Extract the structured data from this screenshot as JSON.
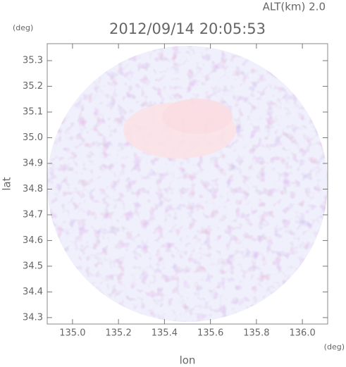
{
  "chart_data": {
    "type": "image",
    "title": "2012/09/14 20:05:53",
    "subtitle": "ALT(km) 2.0",
    "x_label": "lon",
    "y_label": "lat",
    "x_unit": "(deg)",
    "y_unit": "(deg)",
    "xlim": [
      134.89,
      136.11
    ],
    "ylim": [
      34.275,
      35.366
    ],
    "xticks": [
      {
        "value": 135,
        "label": "135.0"
      },
      135.2,
      135.4,
      135.6,
      135.8,
      {
        "value": 136,
        "label": "136.0"
      }
    ],
    "yticks": [
      34.3,
      34.4,
      34.5,
      34.6,
      34.7,
      34.8,
      34.9,
      {
        "value": 35,
        "label": "35.0"
      },
      35.1,
      35.2,
      35.3
    ]
  }
}
